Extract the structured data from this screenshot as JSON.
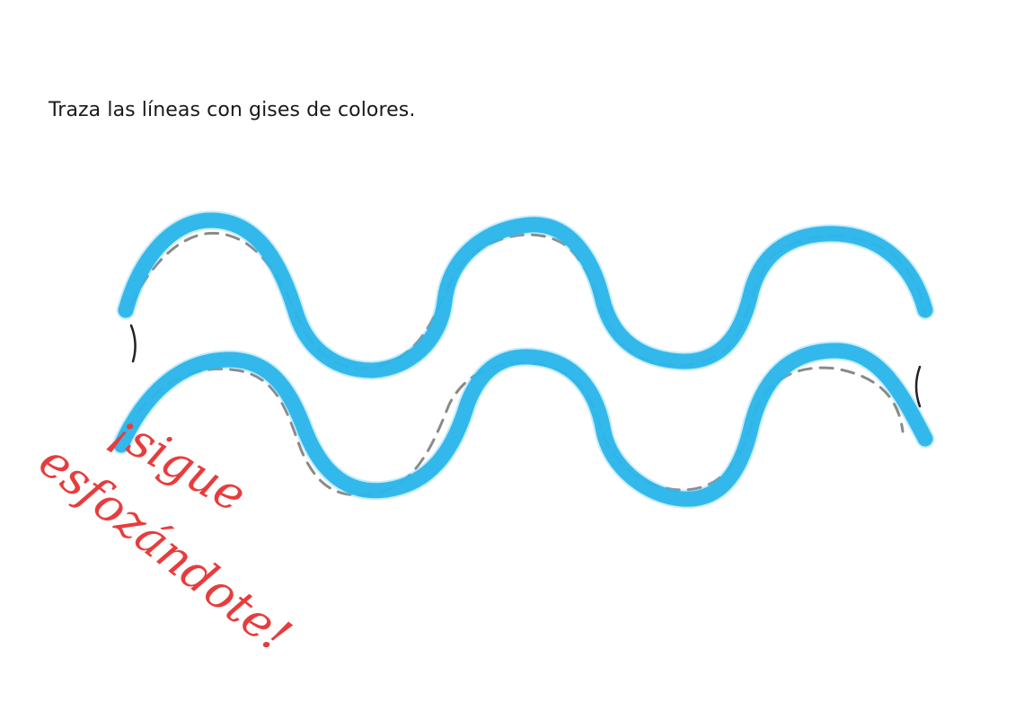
{
  "worksheet": {
    "instruction": "Traza las líneas con gises de colores."
  },
  "teacher_comment": {
    "line1": "¡sigue",
    "line2": "esfozándote!",
    "color": "#e83c3c"
  },
  "colors": {
    "trace": "#2bb5ea",
    "guide_dashes": "#8a8a8a"
  }
}
